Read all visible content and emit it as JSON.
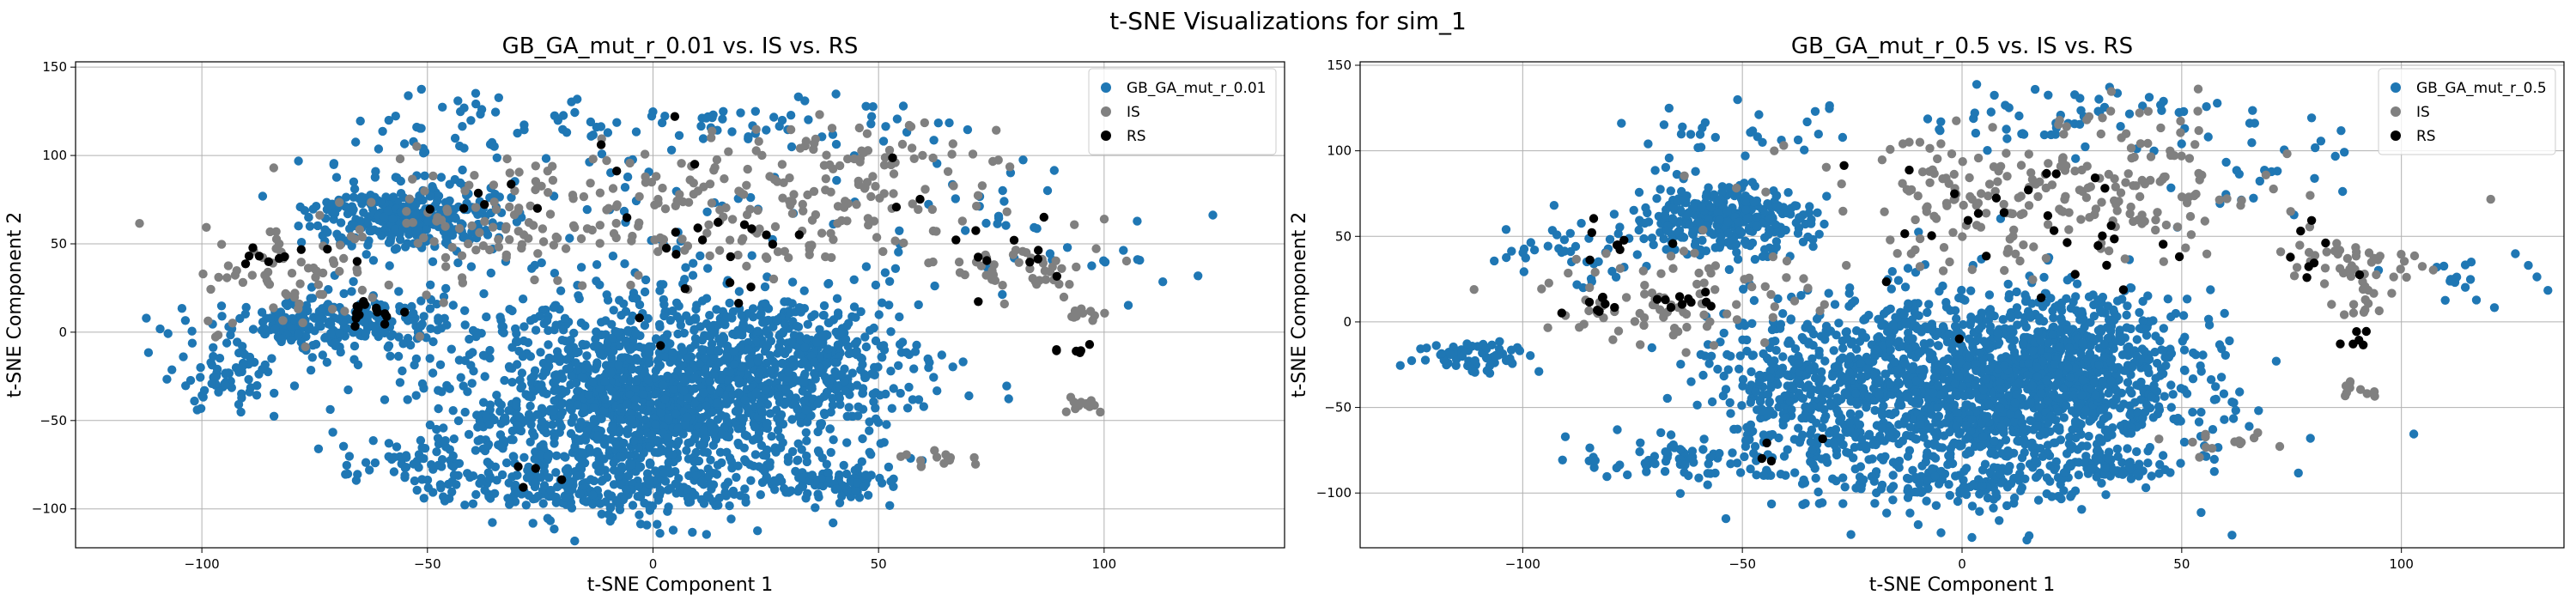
{
  "figure": {
    "suptitle": "t-SNE Visualizations for sim_1"
  },
  "chart_data": [
    {
      "type": "scatter",
      "title": "GB_GA_mut_r_0.01 vs. IS vs. RS",
      "xlabel": "t-SNE Component 1",
      "ylabel": "t-SNE Component 2",
      "xlim": [
        -128,
        140
      ],
      "ylim": [
        -122,
        153
      ],
      "xticks": [
        -100,
        -50,
        0,
        50,
        100
      ],
      "yticks": [
        -100,
        -50,
        0,
        50,
        100,
        150
      ],
      "grid": true,
      "legend": "top-right",
      "series": [
        {
          "name": "GB_GA_mut_r_0.01",
          "color": "#1f77b4",
          "clusters": [
            {
              "cx": 0,
              "cy": -40,
              "sx": 22,
              "sy": 28,
              "n": 1600
            },
            {
              "cx": 32,
              "cy": -15,
              "sx": 14,
              "sy": 18,
              "n": 350
            },
            {
              "cx": -55,
              "cy": 65,
              "sx": 10,
              "sy": 10,
              "n": 320
            },
            {
              "cx": -70,
              "cy": 5,
              "sx": 14,
              "sy": 8,
              "n": 250
            },
            {
              "cx": -95,
              "cy": -25,
              "sx": 7,
              "sy": 10,
              "n": 70
            },
            {
              "cx": -50,
              "cy": -75,
              "sx": 10,
              "sy": 8,
              "n": 80
            },
            {
              "cx": 40,
              "cy": -85,
              "sx": 6,
              "sy": 4,
              "n": 70
            },
            {
              "cx": -10,
              "cy": -90,
              "sx": 15,
              "sy": 6,
              "n": 150
            },
            {
              "cx": 20,
              "cy": 120,
              "sx": 25,
              "sy": 7,
              "n": 60
            },
            {
              "cx": -40,
              "cy": 115,
              "sx": 15,
              "sy": 10,
              "n": 40
            },
            {
              "cx": 80,
              "cy": 70,
              "sx": 12,
              "sy": 20,
              "n": 25
            },
            {
              "cx": 105,
              "cy": 40,
              "sx": 10,
              "sy": 20,
              "n": 12
            },
            {
              "cx": 0,
              "cy": 60,
              "sx": 40,
              "sy": 30,
              "n": 80
            }
          ]
        },
        {
          "name": "IS",
          "color": "#808080",
          "clusters": [
            {
              "cx": 20,
              "cy": 70,
              "sx": 28,
              "sy": 22,
              "n": 220
            },
            {
              "cx": -40,
              "cy": 60,
              "sx": 18,
              "sy": 18,
              "n": 90
            },
            {
              "cx": 82,
              "cy": 35,
              "sx": 8,
              "sy": 8,
              "n": 40
            },
            {
              "cx": 95,
              "cy": -40,
              "sx": 3,
              "sy": 3,
              "n": 12
            },
            {
              "cx": 95,
              "cy": 10,
              "sx": 3,
              "sy": 3,
              "n": 10
            },
            {
              "cx": 65,
              "cy": -72,
              "sx": 5,
              "sy": 3,
              "n": 14
            },
            {
              "cx": -80,
              "cy": 30,
              "sx": 10,
              "sy": 15,
              "n": 60
            },
            {
              "cx": 55,
              "cy": 100,
              "sx": 15,
              "sy": 10,
              "n": 20
            }
          ]
        },
        {
          "name": "RS",
          "color": "#000000",
          "clusters": [
            {
              "cx": -62,
              "cy": 12,
              "sx": 4,
              "sy": 4,
              "n": 15
            },
            {
              "cx": -82,
              "cy": 45,
              "sx": 6,
              "sy": 6,
              "n": 10
            },
            {
              "cx": 92,
              "cy": -10,
              "sx": 2,
              "sy": 3,
              "n": 6
            },
            {
              "cx": 20,
              "cy": 60,
              "sx": 30,
              "sy": 25,
              "n": 30
            },
            {
              "cx": -35,
              "cy": 75,
              "sx": 6,
              "sy": 6,
              "n": 5
            },
            {
              "cx": -30,
              "cy": -80,
              "sx": 8,
              "sy": 5,
              "n": 4
            },
            {
              "cx": 80,
              "cy": 40,
              "sx": 6,
              "sy": 8,
              "n": 8
            }
          ]
        }
      ]
    },
    {
      "type": "scatter",
      "title": "GB_GA_mut_r_0.5 vs. IS vs. RS",
      "xlabel": "t-SNE Component 1",
      "ylabel": "t-SNE Component 2",
      "xlim": [
        -137,
        137
      ],
      "ylim": [
        -132,
        152
      ],
      "xticks": [
        -100,
        -50,
        0,
        50,
        100
      ],
      "yticks": [
        -100,
        -50,
        0,
        50,
        100,
        150
      ],
      "grid": true,
      "legend": "top-right",
      "series": [
        {
          "name": "GB_GA_mut_r_0.5",
          "color": "#1f77b4",
          "clusters": [
            {
              "cx": 0,
              "cy": -40,
              "sx": 24,
              "sy": 28,
              "n": 1600
            },
            {
              "cx": 30,
              "cy": -20,
              "sx": 12,
              "sy": 18,
              "n": 300
            },
            {
              "cx": -55,
              "cy": 60,
              "sx": 10,
              "sy": 10,
              "n": 350
            },
            {
              "cx": -40,
              "cy": -40,
              "sx": 10,
              "sy": 20,
              "n": 150
            },
            {
              "cx": -110,
              "cy": -20,
              "sx": 7,
              "sy": 5,
              "n": 70
            },
            {
              "cx": -65,
              "cy": -80,
              "sx": 12,
              "sy": 6,
              "n": 60
            },
            {
              "cx": 35,
              "cy": -85,
              "sx": 8,
              "sy": 4,
              "n": 70
            },
            {
              "cx": 0,
              "cy": -95,
              "sx": 15,
              "sy": 6,
              "n": 100
            },
            {
              "cx": 25,
              "cy": 120,
              "sx": 20,
              "sy": 10,
              "n": 60
            },
            {
              "cx": -50,
              "cy": 110,
              "sx": 15,
              "sy": 8,
              "n": 30
            },
            {
              "cx": 70,
              "cy": 85,
              "sx": 10,
              "sy": 15,
              "n": 25
            },
            {
              "cx": 115,
              "cy": 25,
              "sx": 8,
              "sy": 8,
              "n": 20
            },
            {
              "cx": -90,
              "cy": 40,
              "sx": 10,
              "sy": 10,
              "n": 40
            }
          ]
        },
        {
          "name": "IS",
          "color": "#808080",
          "clusters": [
            {
              "cx": 20,
              "cy": 70,
              "sx": 28,
              "sy": 20,
              "n": 220
            },
            {
              "cx": -65,
              "cy": 15,
              "sx": 15,
              "sy": 15,
              "n": 90
            },
            {
              "cx": 90,
              "cy": 35,
              "sx": 8,
              "sy": 8,
              "n": 40
            },
            {
              "cx": 90,
              "cy": -40,
              "sx": 3,
              "sy": 3,
              "n": 10
            },
            {
              "cx": 92,
              "cy": 10,
              "sx": 4,
              "sy": 4,
              "n": 12
            },
            {
              "cx": 60,
              "cy": -72,
              "sx": 5,
              "sy": 3,
              "n": 14
            },
            {
              "cx": 45,
              "cy": 110,
              "sx": 10,
              "sy": 10,
              "n": 20
            }
          ]
        },
        {
          "name": "RS",
          "color": "#000000",
          "clusters": [
            {
              "cx": -62,
              "cy": 10,
              "sx": 4,
              "sy": 3,
              "n": 10
            },
            {
              "cx": -85,
              "cy": 10,
              "sx": 4,
              "sy": 4,
              "n": 8
            },
            {
              "cx": 90,
              "cy": -10,
              "sx": 2,
              "sy": 3,
              "n": 6
            },
            {
              "cx": 20,
              "cy": 50,
              "sx": 25,
              "sy": 25,
              "n": 30
            },
            {
              "cx": -80,
              "cy": 45,
              "sx": 8,
              "sy": 6,
              "n": 8
            },
            {
              "cx": -40,
              "cy": -70,
              "sx": 6,
              "sy": 6,
              "n": 4
            },
            {
              "cx": 80,
              "cy": 40,
              "sx": 6,
              "sy": 8,
              "n": 8
            }
          ]
        }
      ]
    }
  ]
}
